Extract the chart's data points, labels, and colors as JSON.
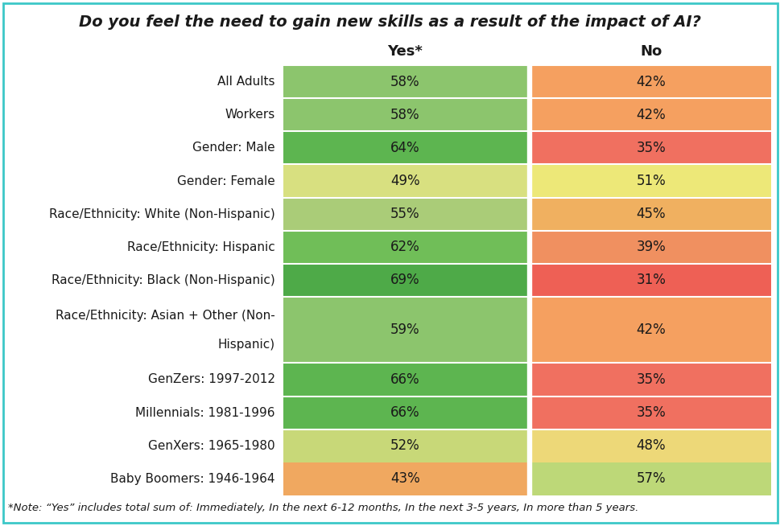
{
  "title": "Do you feel the need to gain new skills as a result of the impact of AI?",
  "col_headers": [
    "Yes*",
    "No"
  ],
  "rows": [
    {
      "label": "All Adults",
      "yes": 58,
      "no": 42,
      "yes_color": "#8CC56D",
      "no_color": "#F5A060"
    },
    {
      "label": "Workers",
      "yes": 58,
      "no": 42,
      "yes_color": "#8CC56D",
      "no_color": "#F5A060"
    },
    {
      "label": "Gender: Male",
      "yes": 64,
      "no": 35,
      "yes_color": "#5DB550",
      "no_color": "#F07060"
    },
    {
      "label": "Gender: Female",
      "yes": 49,
      "no": 51,
      "yes_color": "#D8E080",
      "no_color": "#EDE878"
    },
    {
      "label": "Race/Ethnicity: White (Non-Hispanic)",
      "yes": 55,
      "no": 45,
      "yes_color": "#AACC78",
      "no_color": "#F0B060"
    },
    {
      "label": "Race/Ethnicity: Hispanic",
      "yes": 62,
      "no": 39,
      "yes_color": "#70BE58",
      "no_color": "#F09060"
    },
    {
      "label": "Race/Ethnicity: Black (Non-Hispanic)",
      "yes": 69,
      "no": 31,
      "yes_color": "#4EAA48",
      "no_color": "#EE6055"
    },
    {
      "label": "Race/Ethnicity: Asian + Other (Non-\nHispanic)",
      "yes": 59,
      "no": 42,
      "yes_color": "#8CC56D",
      "no_color": "#F5A060"
    },
    {
      "label": "GenZers: 1997-2012",
      "yes": 66,
      "no": 35,
      "yes_color": "#5DB550",
      "no_color": "#F07060"
    },
    {
      "label": "Millennials: 1981-1996",
      "yes": 66,
      "no": 35,
      "yes_color": "#5DB550",
      "no_color": "#F07060"
    },
    {
      "label": "GenXers: 1965-1980",
      "yes": 52,
      "no": 48,
      "yes_color": "#C8D878",
      "no_color": "#EDD878"
    },
    {
      "label": "Baby Boomers: 1946-1964",
      "yes": 43,
      "no": 57,
      "yes_color": "#F0A860",
      "no_color": "#BDD878"
    }
  ],
  "footnote": "*Note: “Yes” includes total sum of: Immediately, In the next 6-12 months, In the next 3-5 years, In more than 5 years.",
  "background_color": "#FFFFFF",
  "border_color": "#3CC8C8",
  "text_color": "#1A1A1A",
  "cell_text_color": "#1A1A1A",
  "title_fontsize": 14,
  "header_fontsize": 13,
  "label_fontsize": 11,
  "cell_fontsize": 12,
  "footnote_fontsize": 9.5
}
